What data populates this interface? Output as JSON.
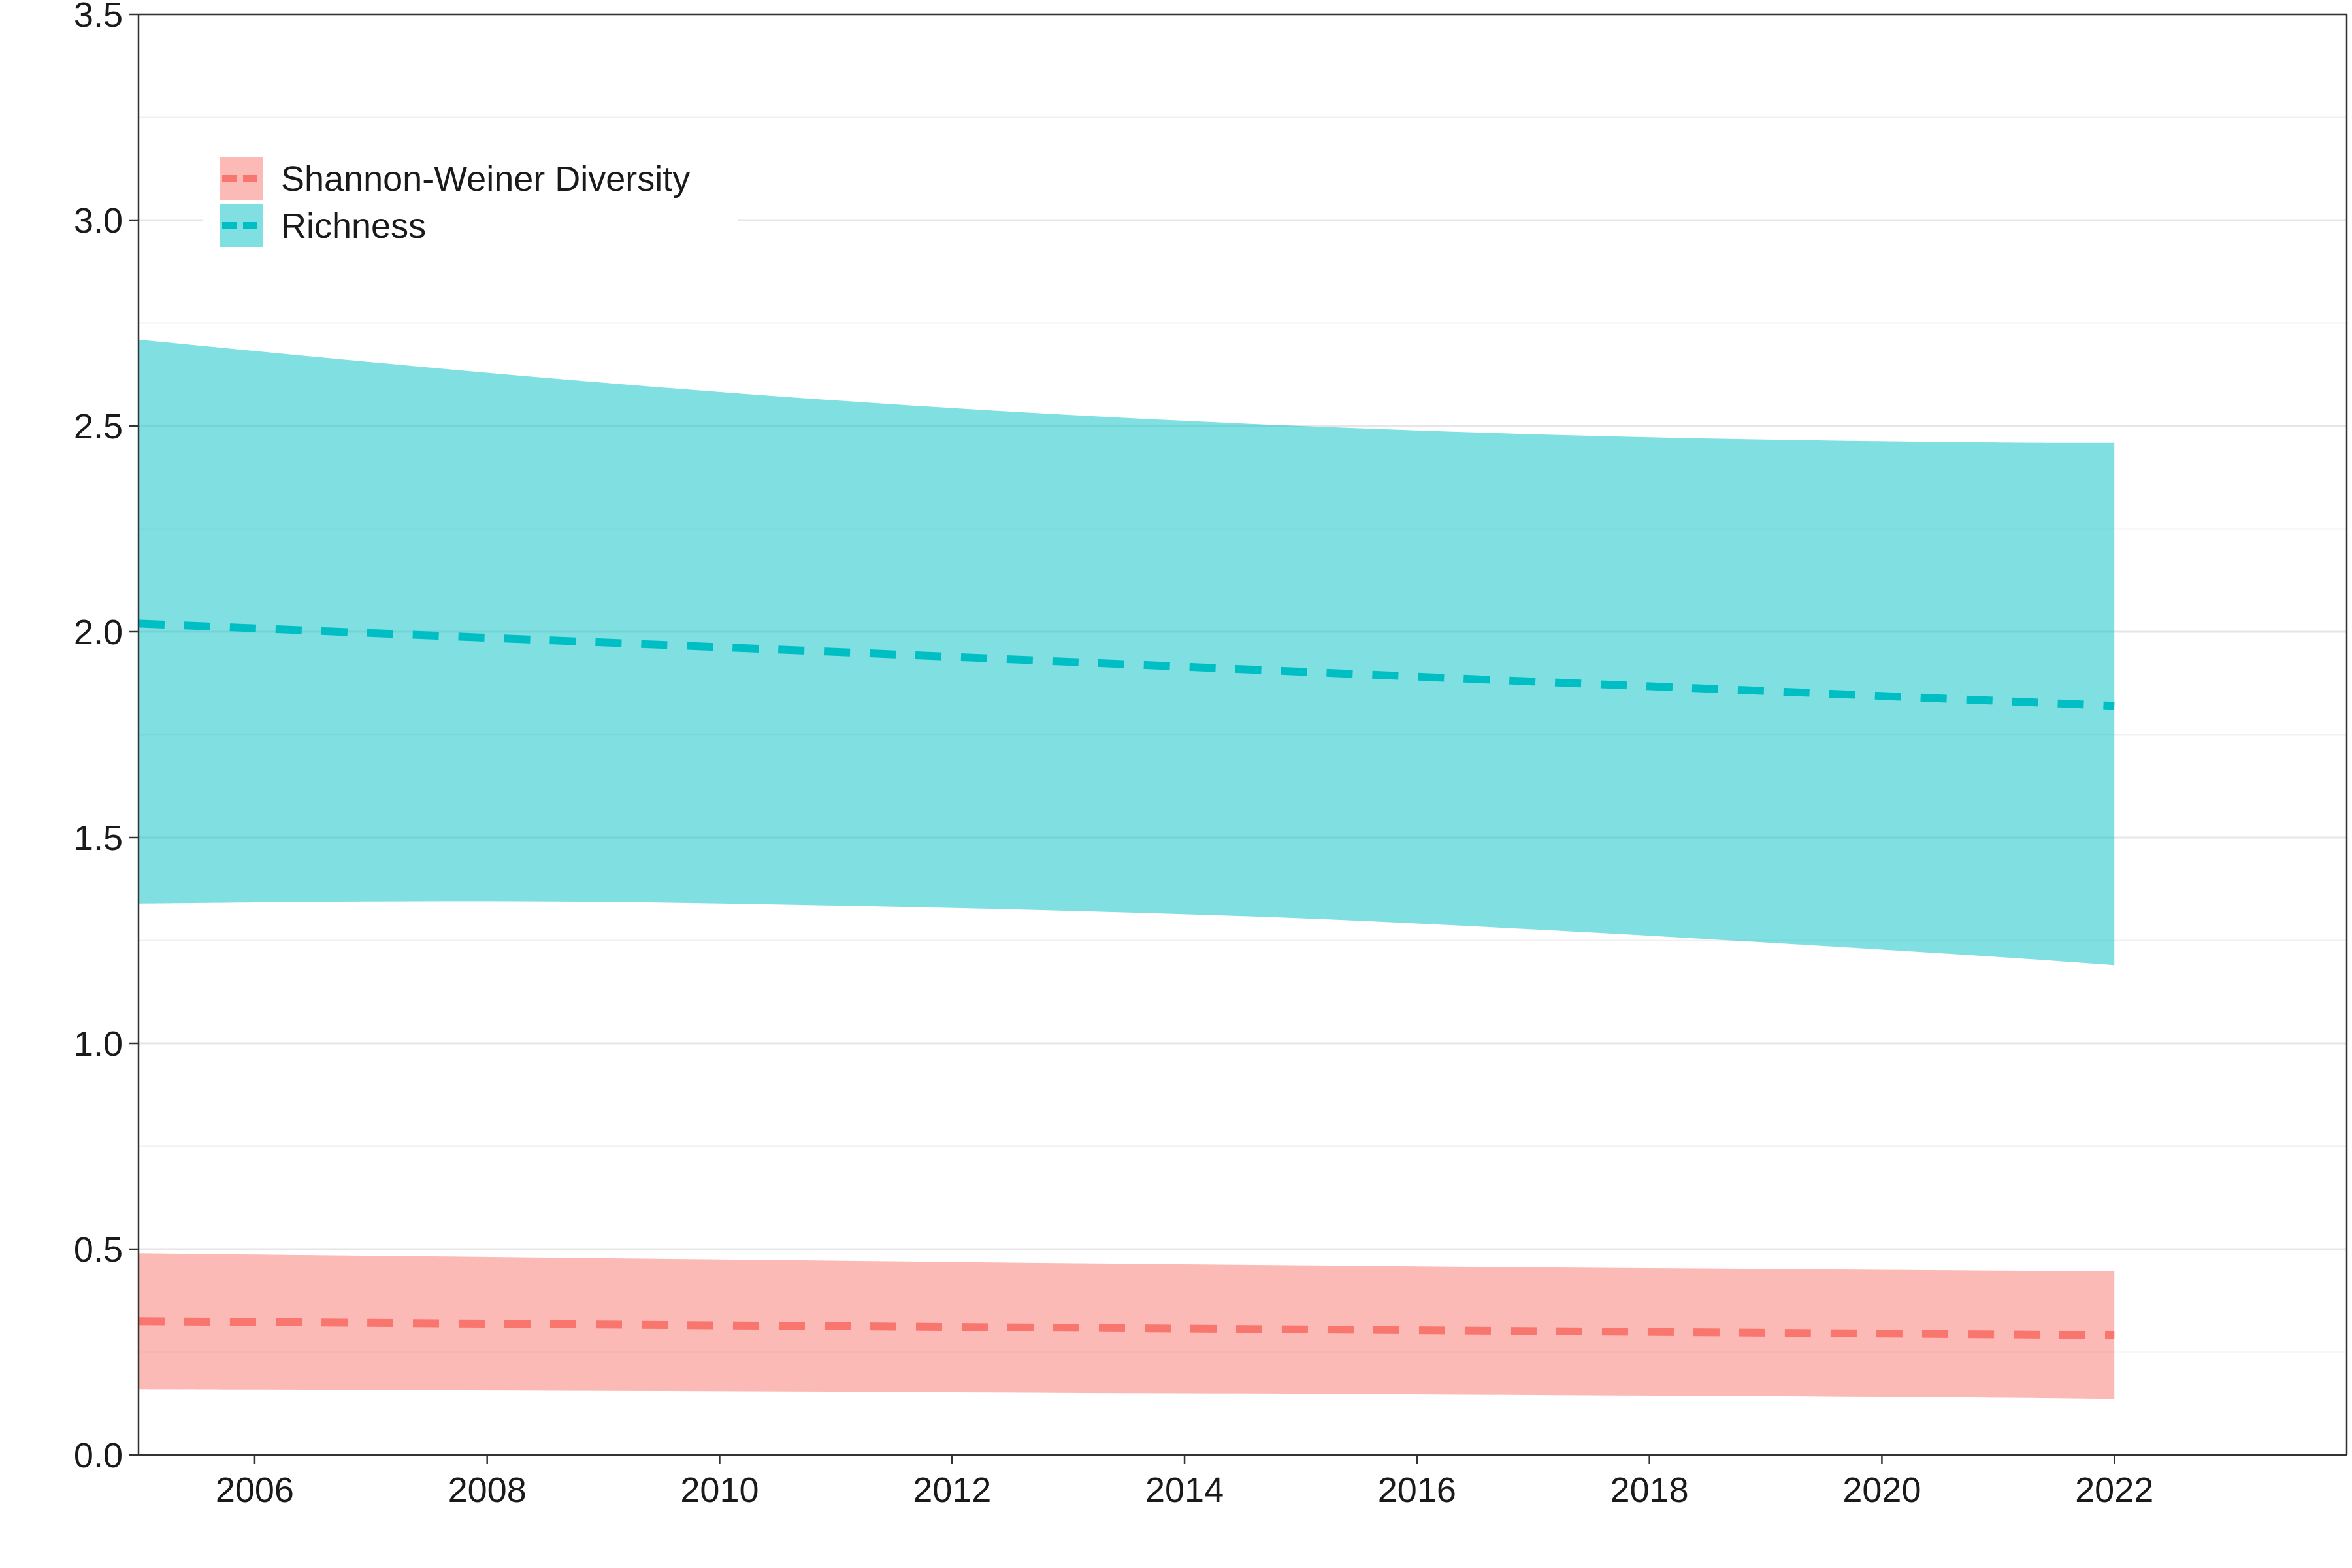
{
  "chart_data": {
    "type": "area",
    "title": "",
    "xlabel": "",
    "ylabel": "",
    "xlim": [
      2005,
      2024
    ],
    "ylim": [
      0,
      3.5
    ],
    "x_ticks": [
      2006,
      2008,
      2010,
      2012,
      2014,
      2016,
      2018,
      2020,
      2022
    ],
    "y_ticks": [
      0.0,
      0.5,
      1.0,
      1.5,
      2.0,
      2.5,
      3.0,
      3.5
    ],
    "y_tick_labels": [
      "0.0",
      "0.5",
      "1.0",
      "1.5",
      "2.0",
      "2.5",
      "3.0",
      "3.5"
    ],
    "grid": true,
    "legend_position": "top-left",
    "x": [
      2005,
      2007,
      2009,
      2011,
      2013,
      2015,
      2017,
      2019,
      2021,
      2022
    ],
    "series": [
      {
        "name": "Shannon-Weiner Diversity",
        "color": "#F8766D",
        "fill": "#F8766D",
        "fit": [
          0.325,
          0.321,
          0.317,
          0.313,
          0.309,
          0.305,
          0.301,
          0.297,
          0.293,
          0.291
        ],
        "lower": [
          0.16,
          0.158,
          0.156,
          0.154,
          0.151,
          0.149,
          0.146,
          0.143,
          0.139,
          0.136
        ],
        "upper": [
          0.49,
          0.484,
          0.478,
          0.472,
          0.466,
          0.461,
          0.456,
          0.452,
          0.448,
          0.446
        ]
      },
      {
        "name": "Richness",
        "color": "#00BFC4",
        "fill": "#00BFC4",
        "fit": [
          2.02,
          1.997,
          1.974,
          1.951,
          1.927,
          1.903,
          1.879,
          1.856,
          1.832,
          1.82
        ],
        "lower": [
          1.34,
          1.345,
          1.344,
          1.335,
          1.322,
          1.304,
          1.277,
          1.245,
          1.21,
          1.19
        ],
        "upper": [
          2.71,
          2.655,
          2.605,
          2.562,
          2.527,
          2.5,
          2.48,
          2.467,
          2.46,
          2.459
        ]
      }
    ]
  }
}
